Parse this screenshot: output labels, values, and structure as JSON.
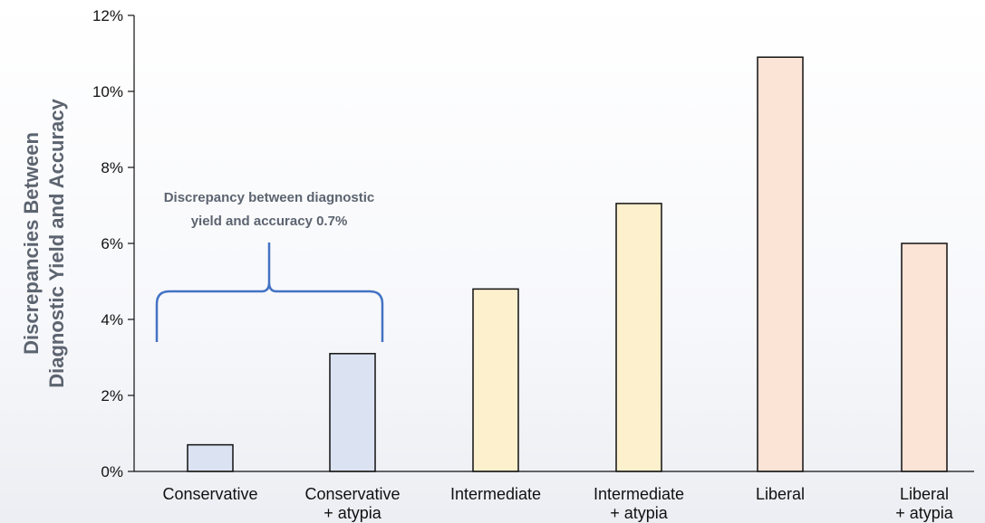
{
  "chart_data": {
    "type": "bar",
    "ylabel": [
      "Discrepancies Between",
      "Diagnostic Yield and Accuracy"
    ],
    "ylim": [
      0,
      12
    ],
    "yticks": [
      "0%",
      "2%",
      "4%",
      "6%",
      "8%",
      "10%",
      "12%"
    ],
    "categories": [
      [
        "Conservative"
      ],
      [
        "Conservative",
        "+ atypia"
      ],
      [
        "Intermediate"
      ],
      [
        "Intermediate",
        "+ atypia"
      ],
      [
        "Liberal"
      ],
      [
        "Liberal",
        "+ atypia"
      ]
    ],
    "values": [
      0.7,
      3.1,
      4.8,
      7.05,
      10.9,
      6.0
    ],
    "colors": [
      "#dbe3f3",
      "#dbe3f3",
      "#fdf0cc",
      "#fdf0cc",
      "#fbe3d6",
      "#fbe3d6"
    ],
    "annotation": {
      "lines": [
        "Discrepancy between diagnostic",
        "yield and accuracy 0.7%"
      ],
      "bracket_color": "#4472c4",
      "spans_categories": [
        0,
        1
      ]
    },
    "grid": false
  }
}
